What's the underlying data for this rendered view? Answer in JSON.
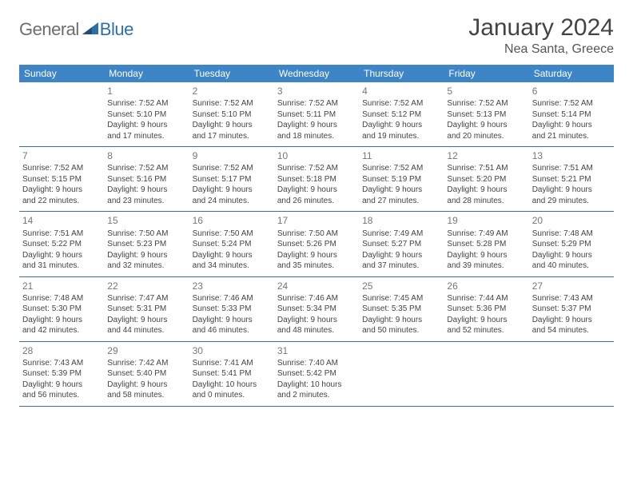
{
  "logo": {
    "general": "General",
    "blue": "Blue"
  },
  "title": "January 2024",
  "subtitle": "Nea Santa, Greece",
  "colors": {
    "header_bg": "#3d85c6",
    "header_text": "#ffffff",
    "border": "#3d6e9e",
    "daynum": "#777777",
    "body_text": "#444444",
    "logo_gray": "#6d6d6d",
    "logo_blue": "#2f6fa8"
  },
  "day_headers": [
    "Sunday",
    "Monday",
    "Tuesday",
    "Wednesday",
    "Thursday",
    "Friday",
    "Saturday"
  ],
  "weeks": [
    [
      null,
      {
        "n": "1",
        "sr": "Sunrise: 7:52 AM",
        "ss": "Sunset: 5:10 PM",
        "d1": "Daylight: 9 hours",
        "d2": "and 17 minutes."
      },
      {
        "n": "2",
        "sr": "Sunrise: 7:52 AM",
        "ss": "Sunset: 5:10 PM",
        "d1": "Daylight: 9 hours",
        "d2": "and 17 minutes."
      },
      {
        "n": "3",
        "sr": "Sunrise: 7:52 AM",
        "ss": "Sunset: 5:11 PM",
        "d1": "Daylight: 9 hours",
        "d2": "and 18 minutes."
      },
      {
        "n": "4",
        "sr": "Sunrise: 7:52 AM",
        "ss": "Sunset: 5:12 PM",
        "d1": "Daylight: 9 hours",
        "d2": "and 19 minutes."
      },
      {
        "n": "5",
        "sr": "Sunrise: 7:52 AM",
        "ss": "Sunset: 5:13 PM",
        "d1": "Daylight: 9 hours",
        "d2": "and 20 minutes."
      },
      {
        "n": "6",
        "sr": "Sunrise: 7:52 AM",
        "ss": "Sunset: 5:14 PM",
        "d1": "Daylight: 9 hours",
        "d2": "and 21 minutes."
      }
    ],
    [
      {
        "n": "7",
        "sr": "Sunrise: 7:52 AM",
        "ss": "Sunset: 5:15 PM",
        "d1": "Daylight: 9 hours",
        "d2": "and 22 minutes."
      },
      {
        "n": "8",
        "sr": "Sunrise: 7:52 AM",
        "ss": "Sunset: 5:16 PM",
        "d1": "Daylight: 9 hours",
        "d2": "and 23 minutes."
      },
      {
        "n": "9",
        "sr": "Sunrise: 7:52 AM",
        "ss": "Sunset: 5:17 PM",
        "d1": "Daylight: 9 hours",
        "d2": "and 24 minutes."
      },
      {
        "n": "10",
        "sr": "Sunrise: 7:52 AM",
        "ss": "Sunset: 5:18 PM",
        "d1": "Daylight: 9 hours",
        "d2": "and 26 minutes."
      },
      {
        "n": "11",
        "sr": "Sunrise: 7:52 AM",
        "ss": "Sunset: 5:19 PM",
        "d1": "Daylight: 9 hours",
        "d2": "and 27 minutes."
      },
      {
        "n": "12",
        "sr": "Sunrise: 7:51 AM",
        "ss": "Sunset: 5:20 PM",
        "d1": "Daylight: 9 hours",
        "d2": "and 28 minutes."
      },
      {
        "n": "13",
        "sr": "Sunrise: 7:51 AM",
        "ss": "Sunset: 5:21 PM",
        "d1": "Daylight: 9 hours",
        "d2": "and 29 minutes."
      }
    ],
    [
      {
        "n": "14",
        "sr": "Sunrise: 7:51 AM",
        "ss": "Sunset: 5:22 PM",
        "d1": "Daylight: 9 hours",
        "d2": "and 31 minutes."
      },
      {
        "n": "15",
        "sr": "Sunrise: 7:50 AM",
        "ss": "Sunset: 5:23 PM",
        "d1": "Daylight: 9 hours",
        "d2": "and 32 minutes."
      },
      {
        "n": "16",
        "sr": "Sunrise: 7:50 AM",
        "ss": "Sunset: 5:24 PM",
        "d1": "Daylight: 9 hours",
        "d2": "and 34 minutes."
      },
      {
        "n": "17",
        "sr": "Sunrise: 7:50 AM",
        "ss": "Sunset: 5:26 PM",
        "d1": "Daylight: 9 hours",
        "d2": "and 35 minutes."
      },
      {
        "n": "18",
        "sr": "Sunrise: 7:49 AM",
        "ss": "Sunset: 5:27 PM",
        "d1": "Daylight: 9 hours",
        "d2": "and 37 minutes."
      },
      {
        "n": "19",
        "sr": "Sunrise: 7:49 AM",
        "ss": "Sunset: 5:28 PM",
        "d1": "Daylight: 9 hours",
        "d2": "and 39 minutes."
      },
      {
        "n": "20",
        "sr": "Sunrise: 7:48 AM",
        "ss": "Sunset: 5:29 PM",
        "d1": "Daylight: 9 hours",
        "d2": "and 40 minutes."
      }
    ],
    [
      {
        "n": "21",
        "sr": "Sunrise: 7:48 AM",
        "ss": "Sunset: 5:30 PM",
        "d1": "Daylight: 9 hours",
        "d2": "and 42 minutes."
      },
      {
        "n": "22",
        "sr": "Sunrise: 7:47 AM",
        "ss": "Sunset: 5:31 PM",
        "d1": "Daylight: 9 hours",
        "d2": "and 44 minutes."
      },
      {
        "n": "23",
        "sr": "Sunrise: 7:46 AM",
        "ss": "Sunset: 5:33 PM",
        "d1": "Daylight: 9 hours",
        "d2": "and 46 minutes."
      },
      {
        "n": "24",
        "sr": "Sunrise: 7:46 AM",
        "ss": "Sunset: 5:34 PM",
        "d1": "Daylight: 9 hours",
        "d2": "and 48 minutes."
      },
      {
        "n": "25",
        "sr": "Sunrise: 7:45 AM",
        "ss": "Sunset: 5:35 PM",
        "d1": "Daylight: 9 hours",
        "d2": "and 50 minutes."
      },
      {
        "n": "26",
        "sr": "Sunrise: 7:44 AM",
        "ss": "Sunset: 5:36 PM",
        "d1": "Daylight: 9 hours",
        "d2": "and 52 minutes."
      },
      {
        "n": "27",
        "sr": "Sunrise: 7:43 AM",
        "ss": "Sunset: 5:37 PM",
        "d1": "Daylight: 9 hours",
        "d2": "and 54 minutes."
      }
    ],
    [
      {
        "n": "28",
        "sr": "Sunrise: 7:43 AM",
        "ss": "Sunset: 5:39 PM",
        "d1": "Daylight: 9 hours",
        "d2": "and 56 minutes."
      },
      {
        "n": "29",
        "sr": "Sunrise: 7:42 AM",
        "ss": "Sunset: 5:40 PM",
        "d1": "Daylight: 9 hours",
        "d2": "and 58 minutes."
      },
      {
        "n": "30",
        "sr": "Sunrise: 7:41 AM",
        "ss": "Sunset: 5:41 PM",
        "d1": "Daylight: 10 hours",
        "d2": "and 0 minutes."
      },
      {
        "n": "31",
        "sr": "Sunrise: 7:40 AM",
        "ss": "Sunset: 5:42 PM",
        "d1": "Daylight: 10 hours",
        "d2": "and 2 minutes."
      },
      null,
      null,
      null
    ]
  ]
}
